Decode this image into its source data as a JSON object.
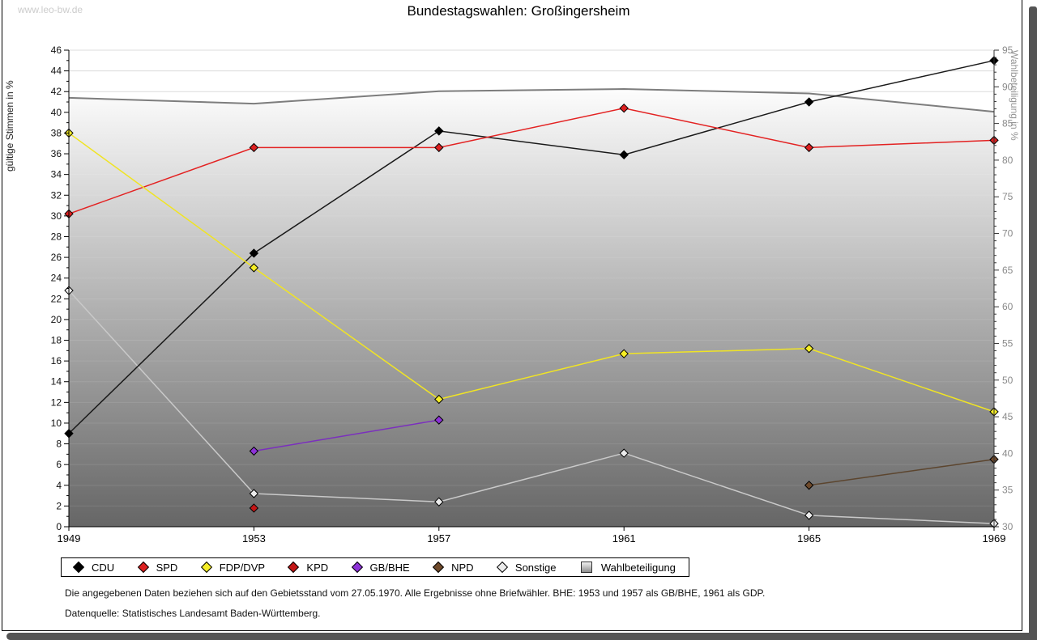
{
  "watermark": "www.leo-bw.de",
  "title": "Bundestagswahlen: Großingersheim",
  "chart_data": {
    "type": "line",
    "x": [
      1949,
      1953,
      1957,
      1961,
      1965,
      1969
    ],
    "left_axis": {
      "label": "gültige Stimmen in %",
      "min": 0,
      "max": 46,
      "label_step": 2,
      "minor_step": 1
    },
    "right_axis": {
      "label": "Wahlbeteiligung in %",
      "min": 30,
      "max": 95,
      "label_step": 5,
      "minor_step": 1
    },
    "grid": true,
    "legend_position": "bottom",
    "series": [
      {
        "name": "CDU",
        "axis": "left",
        "line_color": "#1a1a1a",
        "marker_color": "#000000",
        "values": [
          9.0,
          26.4,
          38.2,
          35.9,
          41.0,
          45.0
        ]
      },
      {
        "name": "SPD",
        "axis": "left",
        "line_color": "#e32222",
        "marker_color": "#dd2020",
        "values": [
          30.2,
          36.6,
          36.6,
          40.4,
          36.6,
          37.3
        ]
      },
      {
        "name": "FDP/DVP",
        "axis": "left",
        "line_color": "#f0e424",
        "marker_color": "#f6ee25",
        "values": [
          38.0,
          25.0,
          12.3,
          16.7,
          17.2,
          11.1
        ]
      },
      {
        "name": "KPD",
        "axis": "left",
        "line_color": "#bb1111",
        "marker_color": "#c41616",
        "values": [
          null,
          1.8,
          null,
          null,
          null,
          null
        ]
      },
      {
        "name": "GB/BHE",
        "axis": "left",
        "line_color": "#7b2fbe",
        "marker_color": "#8d32d8",
        "values": [
          null,
          7.3,
          10.3,
          null,
          null,
          null
        ]
      },
      {
        "name": "NPD",
        "axis": "left",
        "line_color": "#5c452e",
        "marker_color": "#6f4a2b",
        "values": [
          null,
          null,
          null,
          null,
          4.0,
          6.5
        ]
      },
      {
        "name": "Sonstige",
        "axis": "left",
        "line_color": "#c9c9c9",
        "marker_color": "#ececec",
        "values": [
          22.8,
          3.2,
          2.4,
          7.1,
          1.1,
          0.3
        ]
      },
      {
        "name": "Wahlbeteiligung",
        "axis": "right",
        "line_color": "#7d7d7d",
        "marker_color": "gradient",
        "area": true,
        "values": [
          88.5,
          87.7,
          89.4,
          89.7,
          89.1,
          86.6
        ]
      }
    ]
  },
  "footnotes": {
    "line1": "Die angegebenen Daten beziehen sich auf den Gebietsstand vom 27.05.1970. Alle Ergebnisse ohne Briefwähler. BHE: 1953 und 1957 als GB/BHE, 1961 als GDP.",
    "line2": "Datenquelle: Statistisches Landesamt Baden-Württemberg."
  }
}
